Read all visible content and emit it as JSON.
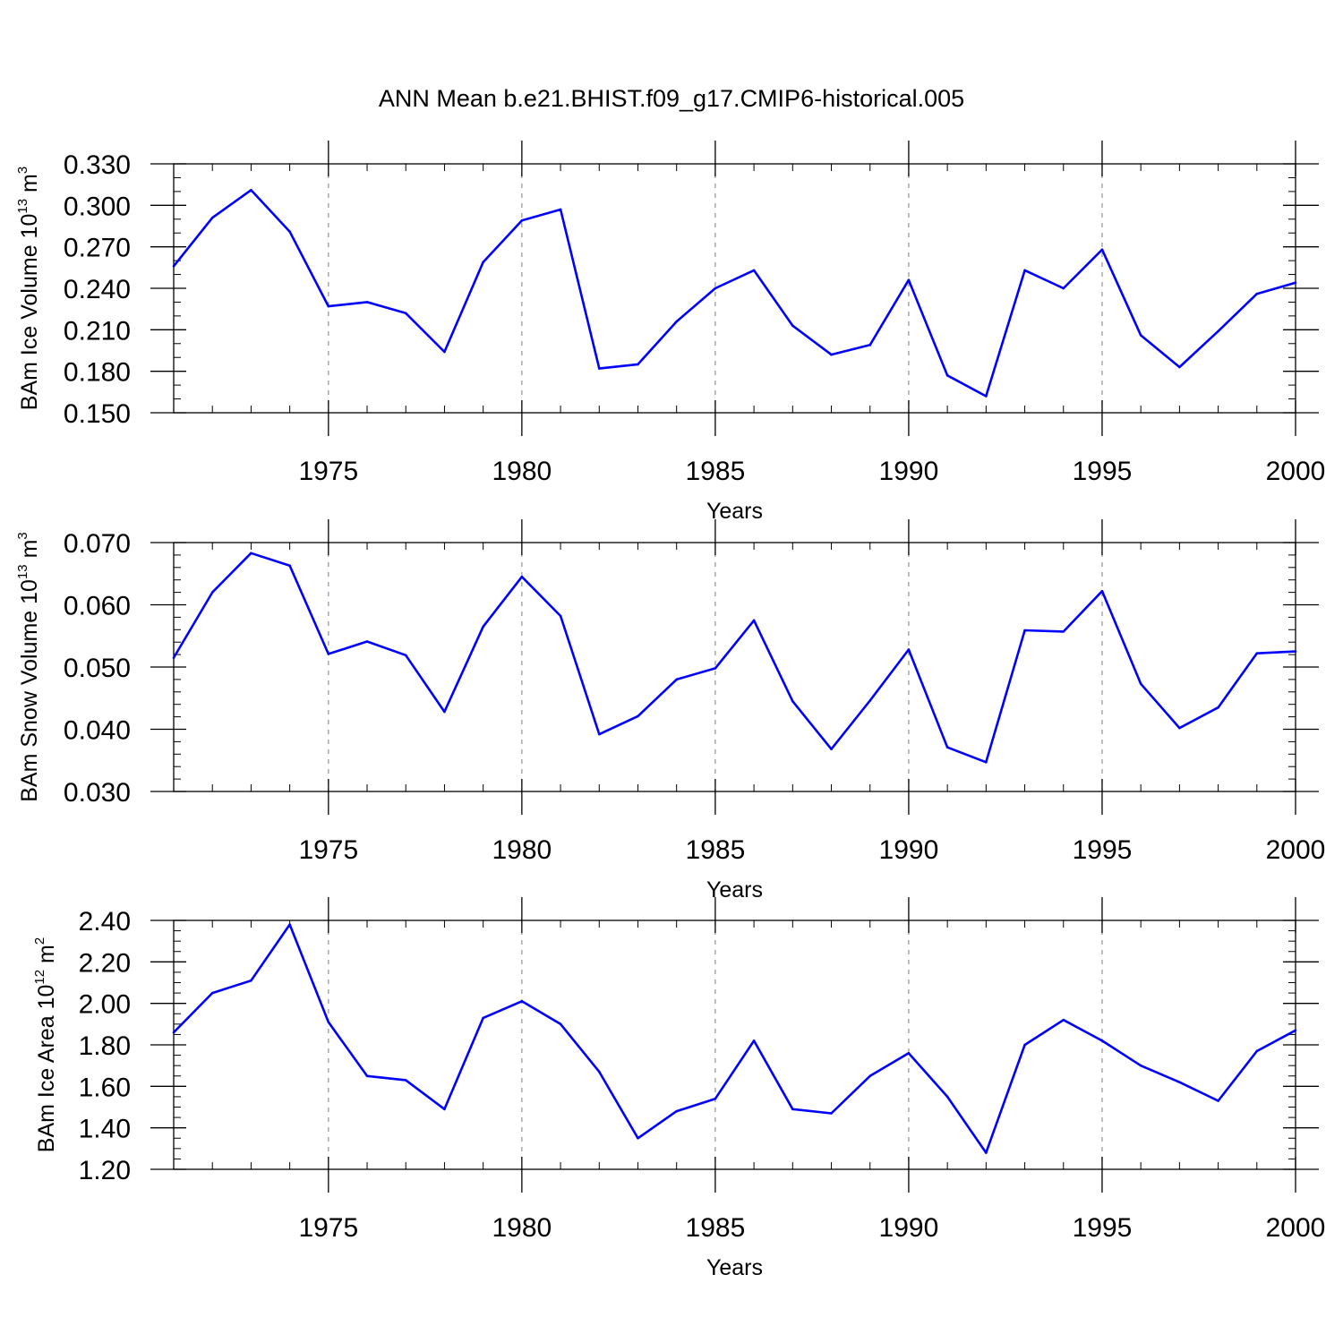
{
  "title": "ANN Mean b.e21.BHIST.f09_g17.CMIP6-historical.005",
  "chart_data": [
    {
      "type": "line",
      "name": "ice-volume",
      "ylabel": "BAm Ice Volume 10",
      "ylabel_exp": "13",
      "ylabel_unit": " m",
      "ylabel_unit_exp": "3",
      "xlabel": "Years",
      "xlim": [
        1971,
        2000
      ],
      "ylim": [
        0.15,
        0.33
      ],
      "xticks": [
        1975,
        1980,
        1985,
        1990,
        1995,
        2000
      ],
      "xtick_labels": [
        "1975",
        "1980",
        "1985",
        "1990",
        "1995",
        "2000"
      ],
      "yticks": [
        0.15,
        0.18,
        0.21,
        0.24,
        0.27,
        0.3,
        0.33
      ],
      "ytick_labels": [
        "0.150",
        "0.180",
        "0.210",
        "0.240",
        "0.270",
        "0.300",
        "0.330"
      ],
      "yminor_step": 0.01,
      "line_color": "#0000ff",
      "x": [
        1971,
        1972,
        1973,
        1974,
        1975,
        1976,
        1977,
        1978,
        1979,
        1980,
        1981,
        1982,
        1983,
        1984,
        1985,
        1986,
        1987,
        1988,
        1989,
        1990,
        1991,
        1992,
        1993,
        1994,
        1995,
        1996,
        1997,
        1998,
        1999,
        2000
      ],
      "y": [
        0.256,
        0.291,
        0.311,
        0.281,
        0.227,
        0.23,
        0.222,
        0.194,
        0.259,
        0.289,
        0.297,
        0.182,
        0.185,
        0.216,
        0.24,
        0.253,
        0.213,
        0.192,
        0.199,
        0.246,
        0.177,
        0.162,
        0.253,
        0.24,
        0.268,
        0.206,
        0.183,
        0.209,
        0.236,
        0.244
      ]
    },
    {
      "type": "line",
      "name": "snow-volume",
      "ylabel": "BAm Snow Volume 10",
      "ylabel_exp": "13",
      "ylabel_unit": " m",
      "ylabel_unit_exp": "3",
      "xlabel": "Years",
      "xlim": [
        1971,
        2000
      ],
      "ylim": [
        0.03,
        0.07
      ],
      "xticks": [
        1975,
        1980,
        1985,
        1990,
        1995,
        2000
      ],
      "xtick_labels": [
        "1975",
        "1980",
        "1985",
        "1990",
        "1995",
        "2000"
      ],
      "yticks": [
        0.03,
        0.04,
        0.05,
        0.06,
        0.07
      ],
      "ytick_labels": [
        "0.030",
        "0.040",
        "0.050",
        "0.060",
        "0.070"
      ],
      "yminor_step": 0.002,
      "line_color": "#0000ff",
      "x": [
        1971,
        1972,
        1973,
        1974,
        1975,
        1976,
        1977,
        1978,
        1979,
        1980,
        1981,
        1982,
        1983,
        1984,
        1985,
        1986,
        1987,
        1988,
        1989,
        1990,
        1991,
        1992,
        1993,
        1994,
        1995,
        1996,
        1997,
        1998,
        1999,
        2000
      ],
      "y": [
        0.0515,
        0.062,
        0.0683,
        0.0663,
        0.0521,
        0.0541,
        0.0519,
        0.0428,
        0.0565,
        0.0645,
        0.0582,
        0.0392,
        0.0421,
        0.048,
        0.0498,
        0.0575,
        0.0445,
        0.0368,
        0.0446,
        0.0528,
        0.0371,
        0.0347,
        0.0559,
        0.0557,
        0.0622,
        0.0473,
        0.0402,
        0.0435,
        0.0522,
        0.0525
      ]
    },
    {
      "type": "line",
      "name": "ice-area",
      "ylabel": "BAm Ice Area 10",
      "ylabel_exp": "12",
      "ylabel_unit": " m",
      "ylabel_unit_exp": "2",
      "xlabel": "Years",
      "xlim": [
        1971,
        2000
      ],
      "ylim": [
        1.2,
        2.4
      ],
      "xticks": [
        1975,
        1980,
        1985,
        1990,
        1995,
        2000
      ],
      "xtick_labels": [
        "1975",
        "1980",
        "1985",
        "1990",
        "1995",
        "2000"
      ],
      "yticks": [
        1.2,
        1.4,
        1.6,
        1.8,
        2.0,
        2.2,
        2.4
      ],
      "ytick_labels": [
        "1.20",
        "1.40",
        "1.60",
        "1.80",
        "2.00",
        "2.20",
        "2.40"
      ],
      "yminor_step": 0.05,
      "line_color": "#0000ff",
      "x": [
        1971,
        1972,
        1973,
        1974,
        1975,
        1976,
        1977,
        1978,
        1979,
        1980,
        1981,
        1982,
        1983,
        1984,
        1985,
        1986,
        1987,
        1988,
        1989,
        1990,
        1991,
        1992,
        1993,
        1994,
        1995,
        1996,
        1997,
        1998,
        1999,
        2000
      ],
      "y": [
        1.86,
        2.05,
        2.11,
        2.38,
        1.91,
        1.65,
        1.63,
        1.49,
        1.93,
        2.01,
        1.9,
        1.67,
        1.35,
        1.48,
        1.54,
        1.82,
        1.49,
        1.47,
        1.65,
        1.76,
        1.55,
        1.28,
        1.8,
        1.92,
        1.82,
        1.7,
        1.62,
        1.53,
        1.77,
        1.87
      ]
    }
  ]
}
